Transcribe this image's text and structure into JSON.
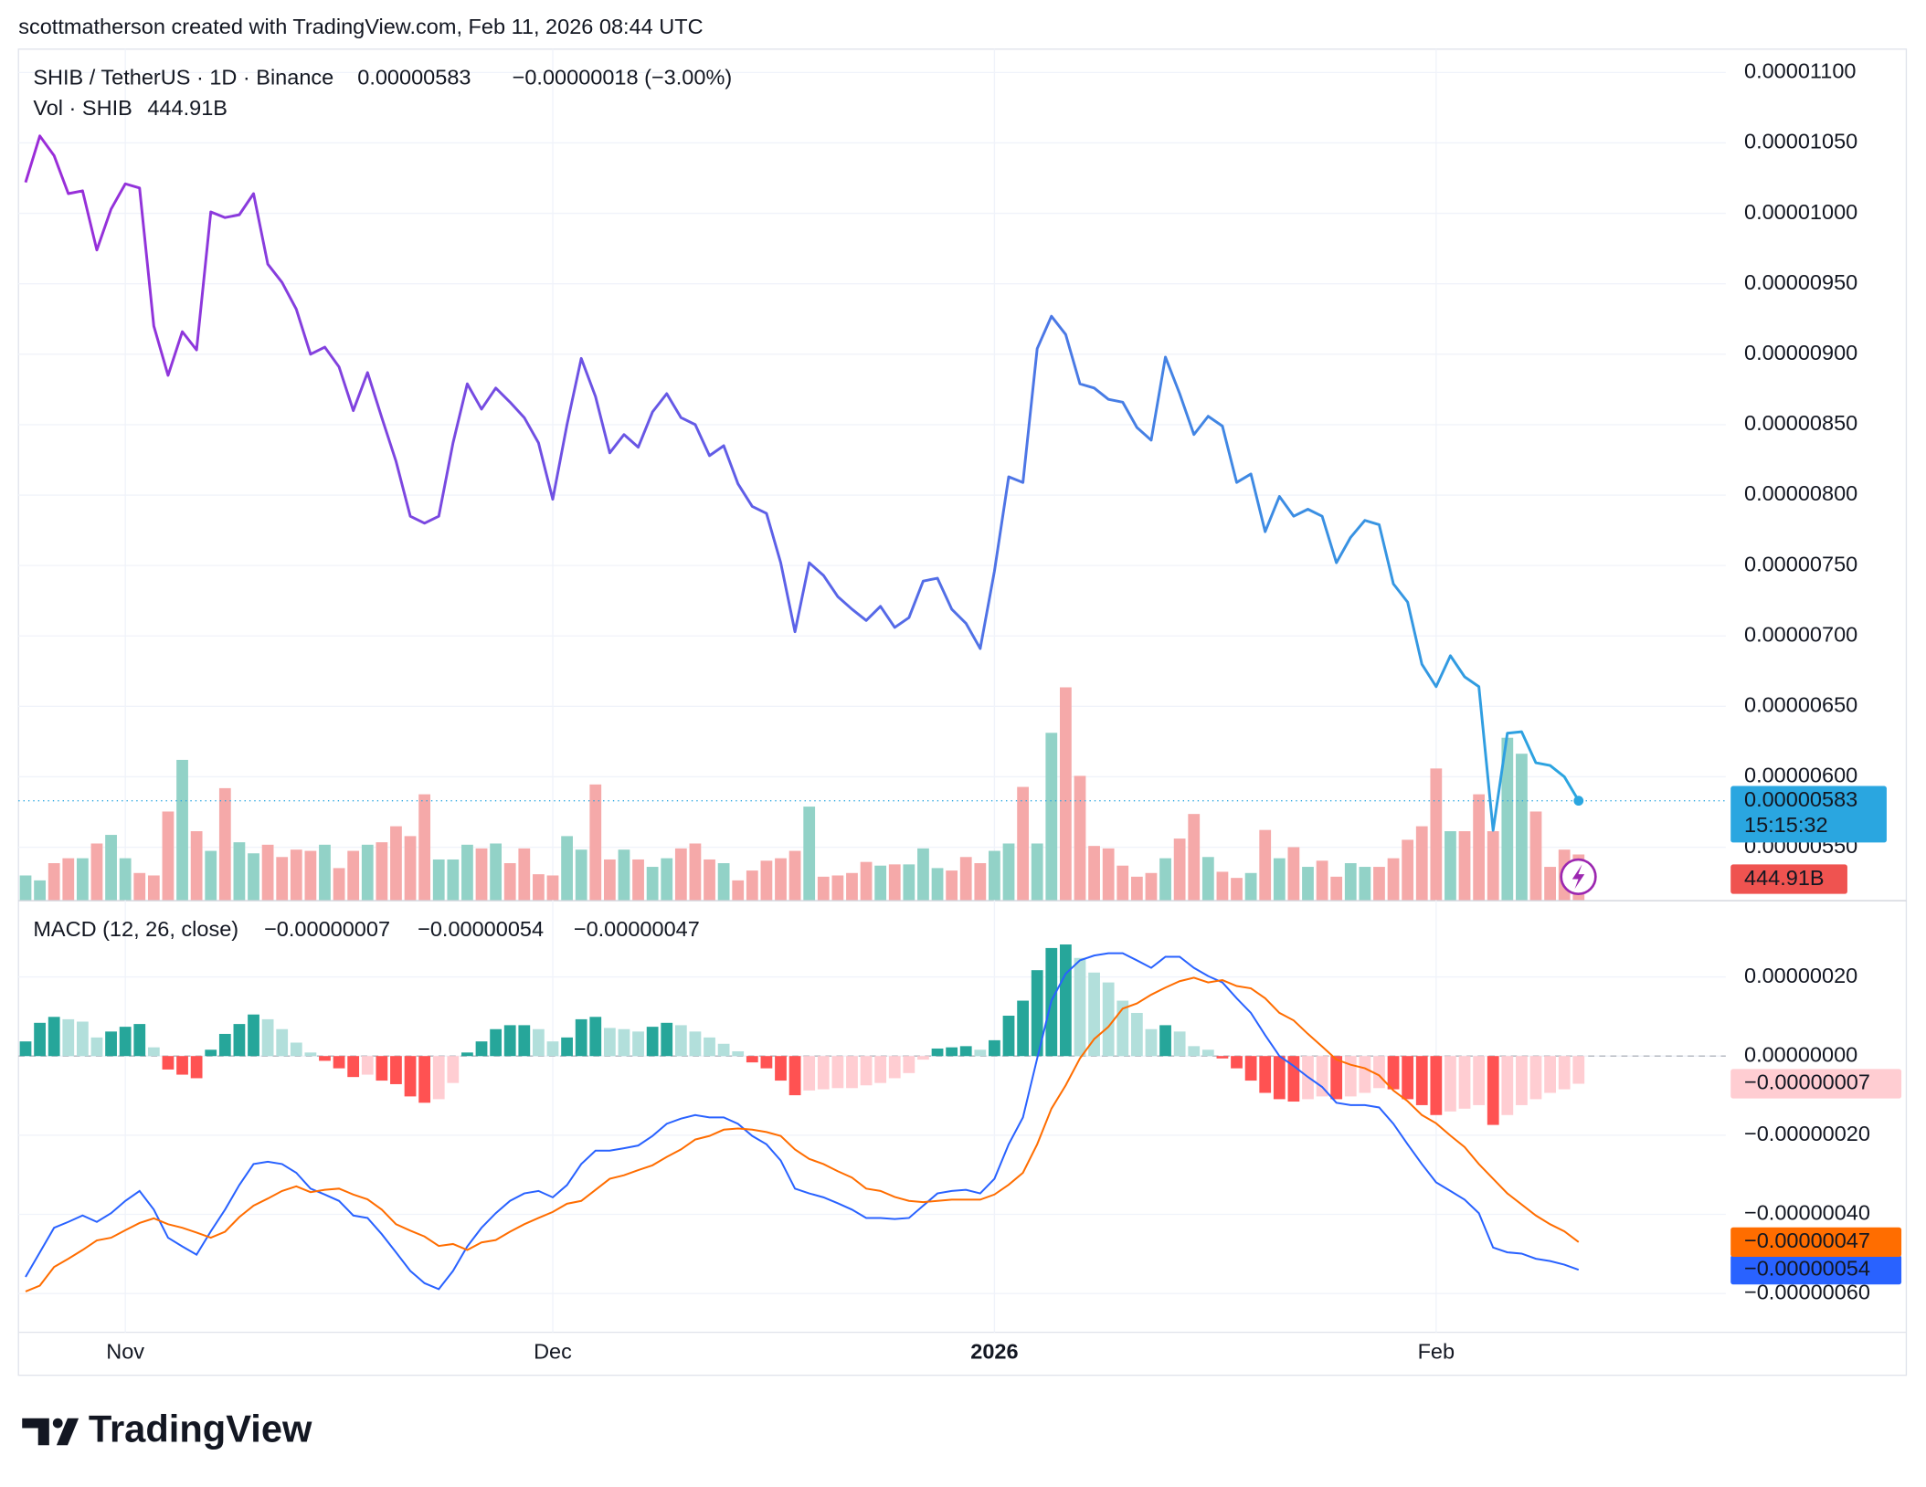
{
  "header": {
    "attribution": "scottmatherson created with TradingView.com, Feb 11, 2026 08:44 UTC",
    "countdown": "15:15:32",
    "logo": "TradingView"
  },
  "chart_data": [
    {
      "type": "line",
      "categories": [
        null,
        null,
        null,
        null,
        null,
        null,
        null,
        "Nov",
        null,
        null,
        null,
        null,
        null,
        null,
        null,
        null,
        null,
        null,
        null,
        null,
        null,
        null,
        null,
        null,
        null,
        null,
        null,
        null,
        null,
        null,
        null,
        null,
        null,
        null,
        null,
        null,
        null,
        "Dec",
        null,
        null,
        null,
        null,
        null,
        null,
        null,
        null,
        null,
        null,
        null,
        null,
        null,
        null,
        null,
        null,
        null,
        null,
        null,
        null,
        null,
        null,
        null,
        null,
        null,
        null,
        null,
        null,
        null,
        null,
        "2026",
        null,
        null,
        null,
        null,
        null,
        null,
        null,
        null,
        null,
        null,
        null,
        null,
        null,
        null,
        null,
        null,
        null,
        null,
        null,
        null,
        null,
        null,
        null,
        null,
        null,
        null,
        null,
        null,
        null,
        null,
        "Feb",
        null,
        null,
        null,
        null,
        null,
        null,
        null,
        null,
        null,
        null
      ],
      "series": [
        {
          "name": "SHIB / TetherUS · 1D · Binance",
          "last_label": "0.00000583",
          "change": "−0.00000018 (−3.00%)",
          "gradient": [
            "#9c2bd8",
            "#5b62e8",
            "#2aa6e0"
          ],
          "values": [
            1.022e-05,
            1.055e-05,
            1.041e-05,
            1.014e-05,
            1.016e-05,
            9.74e-06,
            1.003e-05,
            1.021e-05,
            1.018e-05,
            9.2e-06,
            8.85e-06,
            9.16e-06,
            9.03e-06,
            1.001e-05,
            9.97e-06,
            9.99e-06,
            1.014e-05,
            9.64e-06,
            9.51e-06,
            9.32e-06,
            9e-06,
            9.05e-06,
            8.91e-06,
            8.6e-06,
            8.87e-06,
            8.55e-06,
            8.24e-06,
            7.85e-06,
            7.8e-06,
            7.85e-06,
            8.37e-06,
            8.79e-06,
            8.61e-06,
            8.76e-06,
            8.66e-06,
            8.55e-06,
            8.37e-06,
            7.97e-06,
            8.5e-06,
            8.97e-06,
            8.7e-06,
            8.3e-06,
            8.43e-06,
            8.34e-06,
            8.59e-06,
            8.72e-06,
            8.55e-06,
            8.5e-06,
            8.28e-06,
            8.35e-06,
            8.08e-06,
            7.92e-06,
            7.87e-06,
            7.52e-06,
            7.03e-06,
            7.52e-06,
            7.43e-06,
            7.28e-06,
            7.19e-06,
            7.11e-06,
            7.21e-06,
            7.06e-06,
            7.13e-06,
            7.39e-06,
            7.41e-06,
            7.19e-06,
            7.09e-06,
            6.91e-06,
            7.46e-06,
            8.13e-06,
            8.09e-06,
            9.04e-06,
            9.27e-06,
            9.14e-06,
            8.79e-06,
            8.76e-06,
            8.68e-06,
            8.66e-06,
            8.48e-06,
            8.39e-06,
            8.98e-06,
            8.72e-06,
            8.43e-06,
            8.56e-06,
            8.49e-06,
            8.09e-06,
            8.15e-06,
            7.74e-06,
            7.99e-06,
            7.85e-06,
            7.9e-06,
            7.85e-06,
            7.52e-06,
            7.7e-06,
            7.82e-06,
            7.79e-06,
            7.37e-06,
            7.24e-06,
            6.8e-06,
            6.64e-06,
            6.86e-06,
            6.71e-06,
            6.64e-06,
            5.62e-06,
            6.31e-06,
            6.32e-06,
            6.1e-06,
            6.08e-06,
            6e-06,
            5.83e-06
          ]
        }
      ],
      "ylim": [
        5.125e-06,
        1.1166e-05
      ],
      "yticks": [
        {
          "value": 1.1e-05,
          "label": "0.00001100"
        },
        {
          "value": 1.05e-05,
          "label": "0.00001050"
        },
        {
          "value": 1e-05,
          "label": "0.00001000"
        },
        {
          "value": 9.5e-06,
          "label": "0.00000950"
        },
        {
          "value": 9e-06,
          "label": "0.00000900"
        },
        {
          "value": 8.5e-06,
          "label": "0.00000850"
        },
        {
          "value": 8e-06,
          "label": "0.00000800"
        },
        {
          "value": 7.5e-06,
          "label": "0.00000750"
        },
        {
          "value": 7e-06,
          "label": "0.00000700"
        },
        {
          "value": 6.5e-06,
          "label": "0.00000650"
        },
        {
          "value": 6e-06,
          "label": "0.00000600"
        },
        {
          "value": 5.5e-06,
          "label": "0.00000550"
        }
      ],
      "grid": true
    },
    {
      "type": "bar",
      "series": [
        {
          "name": "Vol · SHIB",
          "last_label": "444.91B",
          "label_color": "#ef5350",
          "up_color": "#92d2c7",
          "down_color": "#f5a9a9",
          "values": [
            240,
            192,
            360,
            408,
            408,
            552,
            636,
            408,
            264,
            240,
            864,
            1368,
            672,
            480,
            1092,
            564,
            456,
            540,
            420,
            492,
            480,
            540,
            312,
            480,
            540,
            564,
            720,
            624,
            1032,
            396,
            396,
            540,
            504,
            552,
            360,
            504,
            252,
            240,
            624,
            492,
            1128,
            396,
            492,
            396,
            324,
            408,
            504,
            552,
            396,
            360,
            192,
            288,
            384,
            408,
            480,
            912,
            228,
            240,
            264,
            372,
            336,
            348,
            348,
            504,
            312,
            288,
            420,
            360,
            480,
            552,
            1104,
            552,
            1632,
            2076,
            1212,
            528,
            504,
            336,
            228,
            264,
            408,
            600,
            840,
            420,
            276,
            216,
            264,
            684,
            408,
            516,
            324,
            384,
            228,
            360,
            324,
            324,
            408,
            588,
            720,
            1284,
            672,
            672,
            1032,
            672,
            1584,
            1428,
            864,
            324,
            492,
            444.91
          ]
        }
      ],
      "ylim": [
        0,
        8304
      ]
    },
    {
      "type": "macd",
      "title": "MACD (12, 26, close)",
      "series": [
        {
          "last_label": "−0.00000007",
          "colors": [
            "#26a69a",
            "#b2dfdb",
            "#ff5252",
            "#ffcdd2"
          ],
          "values": [
            3.7e-08,
            8.4e-08,
            9.9e-08,
            9.3e-08,
            8.7e-08,
            4.7e-08,
            6.2e-08,
            7.4e-08,
            8.1e-08,
            2.2e-08,
            -3.4e-08,
            -4.7e-08,
            -5.6e-08,
            1.6e-08,
            5.6e-08,
            8.1e-08,
            1.05e-07,
            9.3e-08,
            6.8e-08,
            3.4e-08,
            9e-09,
            -1.2e-08,
            -3.1e-08,
            -5.3e-08,
            -4.7e-08,
            -6.2e-08,
            -7.1e-08,
            -1.02e-07,
            -1.18e-07,
            -1.09e-07,
            -6.8e-08,
            9e-09,
            3.7e-08,
            6.8e-08,
            7.8e-08,
            7.8e-08,
            6.8e-08,
            3.7e-08,
            4.7e-08,
            9.3e-08,
            9.9e-08,
            7.1e-08,
            6.8e-08,
            6.2e-08,
            7.4e-08,
            8.4e-08,
            7.8e-08,
            6.2e-08,
            4.7e-08,
            3.1e-08,
            1.2e-08,
            -1.6e-08,
            -3.1e-08,
            -6.2e-08,
            -9.9e-08,
            -8.7e-08,
            -8.4e-08,
            -8.1e-08,
            -8.1e-08,
            -7.4e-08,
            -6.8e-08,
            -5.6e-08,
            -4.3e-08,
            -9e-09,
            1.9e-08,
            2.2e-08,
            2.5e-08,
            1.6e-08,
            4e-08,
            1.02e-07,
            1.4e-07,
            2.17e-07,
            2.73e-07,
            2.82e-07,
            2.48e-07,
            2.11e-07,
            1.86e-07,
            1.4e-07,
            1.09e-07,
            6.8e-08,
            7.8e-08,
            6.2e-08,
            2.5e-08,
            1.6e-08,
            -6e-09,
            -3.1e-08,
            -6.2e-08,
            -9.3e-08,
            -1.09e-07,
            -1.15e-07,
            -1.09e-07,
            -1.02e-07,
            -1.09e-07,
            -1.02e-07,
            -9.3e-08,
            -8.1e-08,
            -8.4e-08,
            -1.09e-07,
            -1.24e-07,
            -1.49e-07,
            -1.4e-07,
            -1.33e-07,
            -1.24e-07,
            -1.74e-07,
            -1.49e-07,
            -1.24e-07,
            -1.09e-07,
            -9.3e-08,
            -8.4e-08,
            -7e-08
          ]
        },
        {
          "last_label": "−0.00000054",
          "color": "#2962ff",
          "values": [
            -5.58e-07,
            -4.96e-07,
            -4.34e-07,
            -4.19e-07,
            -4.03e-07,
            -4.19e-07,
            -3.97e-07,
            -3.66e-07,
            -3.41e-07,
            -3.88e-07,
            -4.59e-07,
            -4.81e-07,
            -5.02e-07,
            -4.43e-07,
            -3.88e-07,
            -3.26e-07,
            -2.73e-07,
            -2.67e-07,
            -2.73e-07,
            -2.95e-07,
            -3.35e-07,
            -3.5e-07,
            -3.66e-07,
            -4.03e-07,
            -4.09e-07,
            -4.5e-07,
            -4.96e-07,
            -5.43e-07,
            -5.74e-07,
            -5.89e-07,
            -5.43e-07,
            -4.81e-07,
            -4.34e-07,
            -3.97e-07,
            -3.66e-07,
            -3.47e-07,
            -3.41e-07,
            -3.57e-07,
            -3.26e-07,
            -2.73e-07,
            -2.39e-07,
            -2.39e-07,
            -2.33e-07,
            -2.26e-07,
            -2.02e-07,
            -1.71e-07,
            -1.58e-07,
            -1.49e-07,
            -1.55e-07,
            -1.55e-07,
            -1.71e-07,
            -2.02e-07,
            -2.23e-07,
            -2.64e-07,
            -3.35e-07,
            -3.47e-07,
            -3.57e-07,
            -3.72e-07,
            -3.88e-07,
            -4.09e-07,
            -4.09e-07,
            -4.12e-07,
            -4.09e-07,
            -3.78e-07,
            -3.47e-07,
            -3.41e-07,
            -3.38e-07,
            -3.47e-07,
            -3.1e-07,
            -2.23e-07,
            -1.55e-07,
            -6e-09,
            1.4e-07,
            2.08e-07,
            2.42e-07,
            2.54e-07,
            2.6e-07,
            2.6e-07,
            2.42e-07,
            2.23e-07,
            2.51e-07,
            2.51e-07,
            2.23e-07,
            2.02e-07,
            1.86e-07,
            1.46e-07,
            1.09e-07,
            5.3e-08,
            0,
            -2.5e-08,
            -5.3e-08,
            -7.8e-08,
            -1.18e-07,
            -1.24e-07,
            -1.24e-07,
            -1.3e-07,
            -1.71e-07,
            -2.23e-07,
            -2.73e-07,
            -3.19e-07,
            -3.41e-07,
            -3.63e-07,
            -3.97e-07,
            -4.84e-07,
            -4.96e-07,
            -4.99e-07,
            -5.12e-07,
            -5.18e-07,
            -5.27e-07,
            -5.4e-07
          ]
        },
        {
          "last_label": "−0.00000047",
          "color": "#ff6d00",
          "values": [
            -5.95e-07,
            -5.8e-07,
            -5.33e-07,
            -5.12e-07,
            -4.9e-07,
            -4.66e-07,
            -4.59e-07,
            -4.4e-07,
            -4.22e-07,
            -4.1e-07,
            -4.25e-07,
            -4.34e-07,
            -4.46e-07,
            -4.59e-07,
            -4.44e-07,
            -4.07e-07,
            -3.78e-07,
            -3.6e-07,
            -3.41e-07,
            -3.29e-07,
            -3.44e-07,
            -3.38e-07,
            -3.35e-07,
            -3.5e-07,
            -3.62e-07,
            -3.88e-07,
            -4.25e-07,
            -4.41e-07,
            -4.56e-07,
            -4.8e-07,
            -4.75e-07,
            -4.9e-07,
            -4.71e-07,
            -4.65e-07,
            -4.44e-07,
            -4.25e-07,
            -4.09e-07,
            -3.94e-07,
            -3.73e-07,
            -3.66e-07,
            -3.38e-07,
            -3.1e-07,
            -3.01e-07,
            -2.88e-07,
            -2.76e-07,
            -2.55e-07,
            -2.36e-07,
            -2.11e-07,
            -2.02e-07,
            -1.86e-07,
            -1.83e-07,
            -1.86e-07,
            -1.92e-07,
            -2.02e-07,
            -2.36e-07,
            -2.6e-07,
            -2.73e-07,
            -2.91e-07,
            -3.07e-07,
            -3.35e-07,
            -3.41e-07,
            -3.56e-07,
            -3.66e-07,
            -3.69e-07,
            -3.66e-07,
            -3.63e-07,
            -3.63e-07,
            -3.63e-07,
            -3.5e-07,
            -3.25e-07,
            -2.95e-07,
            -2.23e-07,
            -1.33e-07,
            -7.4e-08,
            -6e-09,
            4.3e-08,
            7.4e-08,
            1.2e-07,
            1.33e-07,
            1.55e-07,
            1.73e-07,
            1.89e-07,
            1.98e-07,
            1.86e-07,
            1.92e-07,
            1.77e-07,
            1.71e-07,
            1.46e-07,
            1.09e-07,
            9e-08,
            5.6e-08,
            2.4e-08,
            -9e-09,
            -2.2e-08,
            -3.1e-08,
            -4.9e-08,
            -8.7e-08,
            -1.14e-07,
            -1.49e-07,
            -1.7e-07,
            -2.01e-07,
            -2.3e-07,
            -2.73e-07,
            -3.1e-07,
            -3.47e-07,
            -3.75e-07,
            -4.03e-07,
            -4.25e-07,
            -4.43e-07,
            -4.7e-07
          ]
        }
      ],
      "ylim": [
        -6.98e-07,
        3.88e-07
      ],
      "yticks": [
        {
          "value": 2e-07,
          "label": "0.00000020"
        },
        {
          "value": 0,
          "label": "0.00000000"
        },
        {
          "value": -2e-07,
          "label": "−0.00000020"
        },
        {
          "value": -4e-07,
          "label": "−0.00000040"
        },
        {
          "value": -6e-07,
          "label": "−0.00000060"
        }
      ],
      "grid": true
    }
  ]
}
